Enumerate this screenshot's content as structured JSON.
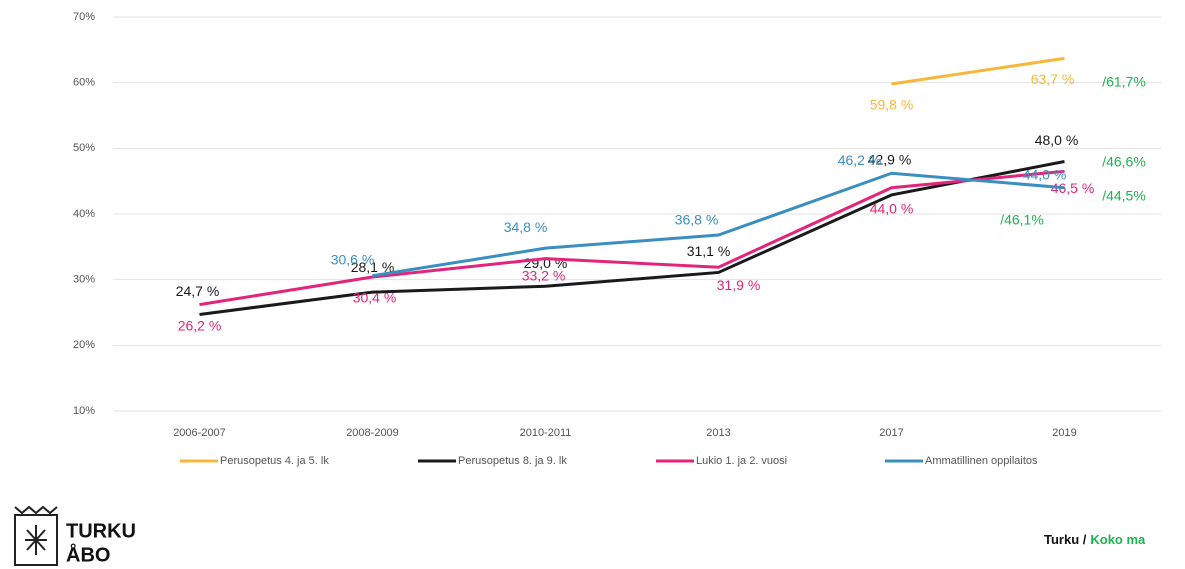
{
  "chart_data": {
    "type": "line",
    "categories": [
      "2006-2007",
      "2008-2009",
      "2010-2011",
      "2013",
      "2017",
      "2019"
    ],
    "ylim": [
      10,
      70
    ],
    "yticks": [
      {
        "value": 10,
        "label": "10%"
      },
      {
        "value": 20,
        "label": "20%"
      },
      {
        "value": 30,
        "label": "30%"
      },
      {
        "value": 40,
        "label": "40%"
      },
      {
        "value": 50,
        "label": "50%"
      },
      {
        "value": 60,
        "label": "60%"
      },
      {
        "value": 70,
        "label": "70%"
      }
    ],
    "grid": true,
    "legend": "bottom",
    "series": [
      {
        "name": "Perusopetus 4. ja 5. lk",
        "color": "#f5b83d",
        "values": [
          null,
          null,
          null,
          null,
          59.8,
          63.7
        ],
        "value_labels": [
          null,
          null,
          null,
          null,
          "59,8 %",
          "63,7 %"
        ]
      },
      {
        "name": "Perusopetus 8. ja 9. lk",
        "color": "#1a1a1a",
        "values": [
          24.7,
          28.1,
          29.0,
          31.1,
          42.9,
          48.0
        ],
        "value_labels": [
          "24,7 %",
          "28,1 %",
          "29,0 %",
          "31,1 %",
          "42,9 %",
          "48,0 %"
        ]
      },
      {
        "name": "Lukio 1. ja 2. vuosi",
        "color": "#e2247b",
        "values": [
          26.2,
          30.4,
          33.2,
          31.9,
          44.0,
          46.5
        ],
        "value_labels": [
          "26,2 %",
          "30,4 %",
          "33,2 %",
          "31,9 %",
          "44,0 %",
          "46,5 %"
        ]
      },
      {
        "name": "Ammatillinen oppilaitos",
        "color": "#3a8fc0",
        "values": [
          null,
          30.6,
          34.8,
          36.8,
          46.2,
          44.0
        ],
        "value_labels": [
          null,
          "30,6 %",
          "34,8 %",
          "36,8 %",
          "46,2 %",
          "44,0 %"
        ]
      }
    ],
    "annotations": [
      "/61,7%",
      "/46,6%",
      "/44,5%",
      "/46,1%"
    ]
  },
  "logo": {
    "line1": "TURKU",
    "line2": "ÅBO"
  },
  "footer": {
    "city": "Turku /",
    "country": "Koko ma"
  }
}
